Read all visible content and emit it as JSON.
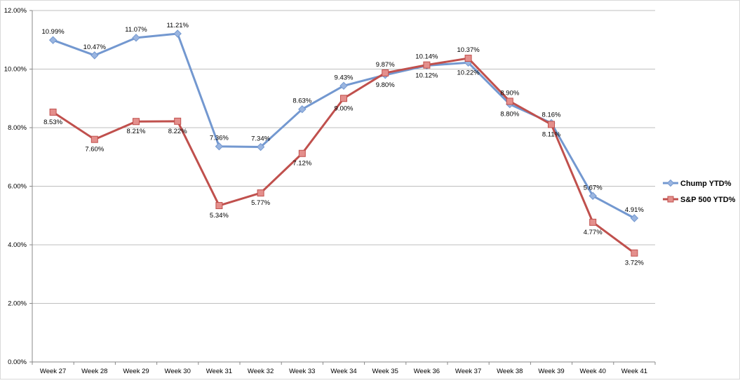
{
  "chart_data": {
    "type": "line",
    "categories": [
      "Week 27",
      "Week 28",
      "Week 29",
      "Week 30",
      "Week 31",
      "Week 32",
      "Week 33",
      "Week 34",
      "Week 35",
      "Week 36",
      "Week 37",
      "Week 38",
      "Week 39",
      "Week 40",
      "Week 41"
    ],
    "series": [
      {
        "name": "Chump YTD%",
        "color": "#7398d0",
        "marker": "diamond",
        "values": [
          10.99,
          10.47,
          11.07,
          11.21,
          7.36,
          7.34,
          8.63,
          9.43,
          9.8,
          10.12,
          10.22,
          8.8,
          8.16,
          5.67,
          4.91
        ],
        "labels": [
          "10.99%",
          "10.47%",
          "11.07%",
          "11.21%",
          "7.36%",
          "7.34%",
          "8.63%",
          "9.43%",
          "9.80%",
          "10.12%",
          "10.22%",
          "8.80%",
          "8.16%",
          "5.67%",
          "4.91%"
        ]
      },
      {
        "name": "S&P 500 YTD%",
        "color": "#c0504d",
        "marker": "square",
        "values": [
          8.53,
          7.6,
          8.21,
          8.22,
          5.34,
          5.77,
          7.12,
          9.0,
          9.87,
          10.14,
          10.37,
          8.9,
          8.11,
          4.77,
          3.72
        ],
        "labels": [
          "8.53%",
          "7.60%",
          "8.21%",
          "8.22%",
          "5.34%",
          "5.77%",
          "7.12%",
          "9.00%",
          "9.87%",
          "10.14%",
          "10.37%",
          "8.90%",
          "8.11%",
          "4.77%",
          "3.72%"
        ]
      }
    ],
    "yticks": [
      "0.00%",
      "2.00%",
      "4.00%",
      "6.00%",
      "8.00%",
      "10.00%",
      "12.00%"
    ],
    "ylim": [
      0,
      12
    ],
    "grid": true,
    "legend": "right"
  }
}
